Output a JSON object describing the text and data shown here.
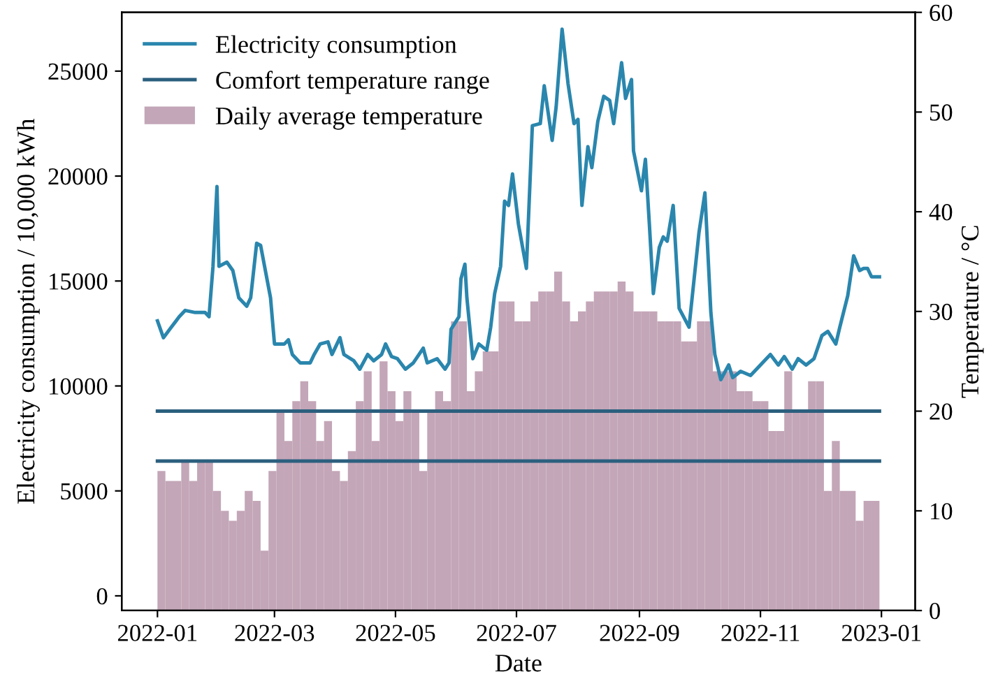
{
  "chart_data": {
    "type": "line",
    "xlabel": "Date",
    "ylabel": "Electricity consumption / 10,000 kWh",
    "y2label": "Temperature / °C",
    "xlim": [
      "2021-12-14",
      "2023-01-18"
    ],
    "xticks": [
      "2022-01",
      "2022-03",
      "2022-05",
      "2022-07",
      "2022-09",
      "2022-11",
      "2023-01"
    ],
    "ylim": [
      -700,
      27800
    ],
    "yticks": [
      0,
      5000,
      10000,
      15000,
      20000,
      25000
    ],
    "y2lim": [
      0,
      60
    ],
    "y2ticks": [
      0,
      10,
      20,
      30,
      40,
      50,
      60
    ],
    "legend": "top left",
    "grid": false,
    "marker": "none",
    "line_style": "solid",
    "series": [
      {
        "name": "Electricity consumption",
        "axis": "y",
        "color": "#2a86ad",
        "x": [
          "2022-01-01",
          "2022-01-04",
          "2022-01-08",
          "2022-01-12",
          "2022-01-15",
          "2022-01-20",
          "2022-01-25",
          "2022-01-27",
          "2022-01-29",
          "2022-01-31",
          "2022-02-01",
          "2022-02-05",
          "2022-02-08",
          "2022-02-11",
          "2022-02-15",
          "2022-02-17",
          "2022-02-20",
          "2022-02-22",
          "2022-02-27",
          "2022-03-01",
          "2022-03-06",
          "2022-03-08",
          "2022-03-10",
          "2022-03-14",
          "2022-03-19",
          "2022-03-21",
          "2022-03-24",
          "2022-03-28",
          "2022-03-30",
          "2022-04-03",
          "2022-04-05",
          "2022-04-10",
          "2022-04-13",
          "2022-04-17",
          "2022-04-20",
          "2022-04-24",
          "2022-04-26",
          "2022-04-29",
          "2022-05-02",
          "2022-05-06",
          "2022-05-10",
          "2022-05-15",
          "2022-05-17",
          "2022-05-22",
          "2022-05-26",
          "2022-05-28",
          "2022-05-29",
          "2022-06-02",
          "2022-06-03",
          "2022-06-05",
          "2022-06-06",
          "2022-06-09",
          "2022-06-12",
          "2022-06-16",
          "2022-06-18",
          "2022-06-20",
          "2022-06-23",
          "2022-06-25",
          "2022-06-27",
          "2022-06-29",
          "2022-07-02",
          "2022-07-06",
          "2022-07-09",
          "2022-07-13",
          "2022-07-15",
          "2022-07-19",
          "2022-07-21",
          "2022-07-24",
          "2022-07-27",
          "2022-07-30",
          "2022-08-01",
          "2022-08-03",
          "2022-08-06",
          "2022-08-08",
          "2022-08-11",
          "2022-08-14",
          "2022-08-17",
          "2022-08-19",
          "2022-08-23",
          "2022-08-25",
          "2022-08-28",
          "2022-08-29",
          "2022-09-02",
          "2022-09-04",
          "2022-09-06",
          "2022-09-08",
          "2022-09-11",
          "2022-09-13",
          "2022-09-15",
          "2022-09-18",
          "2022-09-21",
          "2022-09-26",
          "2022-10-01",
          "2022-10-04",
          "2022-10-07",
          "2022-10-09",
          "2022-10-12",
          "2022-10-16",
          "2022-10-18",
          "2022-10-22",
          "2022-10-27",
          "2022-11-01",
          "2022-11-06",
          "2022-11-10",
          "2022-11-13",
          "2022-11-17",
          "2022-11-20",
          "2022-11-24",
          "2022-11-28",
          "2022-12-02",
          "2022-12-05",
          "2022-12-09",
          "2022-12-11",
          "2022-12-15",
          "2022-12-18",
          "2022-12-21",
          "2022-12-23",
          "2022-12-25",
          "2022-12-27",
          "2022-12-31"
        ],
        "values": [
          13100,
          12300,
          12800,
          13300,
          13600,
          13500,
          13500,
          13300,
          15700,
          19500,
          15700,
          15900,
          15500,
          14200,
          13800,
          14200,
          16800,
          16700,
          14200,
          12000,
          12000,
          12200,
          11500,
          11100,
          11100,
          11500,
          12000,
          12100,
          11500,
          12300,
          11500,
          11200,
          10800,
          11500,
          11200,
          11500,
          12000,
          11400,
          11300,
          10800,
          11100,
          11800,
          11100,
          11300,
          10800,
          11100,
          12700,
          13300,
          15100,
          15800,
          14200,
          11300,
          12000,
          11700,
          12800,
          14400,
          15700,
          18800,
          18600,
          20100,
          17700,
          15600,
          22400,
          22500,
          24300,
          21700,
          23300,
          27000,
          24400,
          22500,
          22700,
          18600,
          21400,
          20400,
          22600,
          23800,
          23600,
          22500,
          25400,
          23700,
          24600,
          21200,
          19300,
          20800,
          17700,
          14400,
          16600,
          17100,
          16900,
          18600,
          13700,
          12800,
          17300,
          19200,
          13500,
          11500,
          10300,
          11000,
          10400,
          10700,
          10500,
          11000,
          11500,
          11000,
          11400,
          10800,
          11300,
          11000,
          11300,
          12400,
          12600,
          12000,
          12800,
          14300,
          16200,
          15500,
          15600,
          15600,
          15200,
          15200
        ]
      },
      {
        "name": "Daily average temperature",
        "type": "bar",
        "axis": "y2",
        "color": "#c3a6b8",
        "x": [
          "2022-01-01",
          "2022-01-05",
          "2022-01-09",
          "2022-01-13",
          "2022-01-17",
          "2022-01-21",
          "2022-01-25",
          "2022-01-29",
          "2022-02-02",
          "2022-02-06",
          "2022-02-10",
          "2022-02-14",
          "2022-02-18",
          "2022-02-22",
          "2022-02-26",
          "2022-03-02",
          "2022-03-06",
          "2022-03-10",
          "2022-03-14",
          "2022-03-18",
          "2022-03-22",
          "2022-03-26",
          "2022-03-30",
          "2022-04-03",
          "2022-04-07",
          "2022-04-11",
          "2022-04-15",
          "2022-04-19",
          "2022-04-23",
          "2022-04-27",
          "2022-05-01",
          "2022-05-05",
          "2022-05-09",
          "2022-05-13",
          "2022-05-17",
          "2022-05-21",
          "2022-05-25",
          "2022-05-29",
          "2022-06-02",
          "2022-06-06",
          "2022-06-10",
          "2022-06-14",
          "2022-06-18",
          "2022-06-22",
          "2022-06-26",
          "2022-06-30",
          "2022-07-04",
          "2022-07-08",
          "2022-07-12",
          "2022-07-16",
          "2022-07-20",
          "2022-07-24",
          "2022-07-28",
          "2022-08-01",
          "2022-08-05",
          "2022-08-09",
          "2022-08-13",
          "2022-08-17",
          "2022-08-21",
          "2022-08-25",
          "2022-08-29",
          "2022-09-02",
          "2022-09-06",
          "2022-09-10",
          "2022-09-14",
          "2022-09-18",
          "2022-09-22",
          "2022-09-26",
          "2022-09-30",
          "2022-10-04",
          "2022-10-08",
          "2022-10-12",
          "2022-10-16",
          "2022-10-20",
          "2022-10-24",
          "2022-10-28",
          "2022-11-01",
          "2022-11-05",
          "2022-11-09",
          "2022-11-13",
          "2022-11-17",
          "2022-11-21",
          "2022-11-25",
          "2022-11-29",
          "2022-12-03",
          "2022-12-07",
          "2022-12-11",
          "2022-12-15",
          "2022-12-19",
          "2022-12-23",
          "2022-12-27"
        ],
        "values": [
          14,
          13,
          13,
          15,
          13,
          15,
          15,
          12,
          10,
          9,
          10,
          12,
          11,
          6,
          14,
          20,
          17,
          21,
          23,
          21,
          17,
          19,
          14,
          13,
          16,
          21,
          24,
          17,
          25,
          22,
          19,
          22,
          20,
          14,
          20,
          22,
          21,
          29,
          29,
          22,
          24,
          26,
          26,
          31,
          31,
          29,
          29,
          31,
          32,
          32,
          34,
          31,
          29,
          30,
          31,
          32,
          32,
          32,
          33,
          32,
          30,
          30,
          30,
          29,
          29,
          29,
          27,
          27,
          29,
          29,
          24,
          24,
          24,
          22,
          22,
          21,
          21,
          18,
          18,
          24,
          20,
          20,
          23,
          23,
          12,
          17,
          12,
          12,
          9,
          11,
          11
        ]
      }
    ],
    "ref_lines": [
      {
        "axis": "y2",
        "value": 20,
        "label": "Comfort temperature range",
        "color": "#2b5f7e",
        "line_style": "solid"
      },
      {
        "axis": "y2",
        "value": 15,
        "color": "#2b5f7e",
        "line_style": "solid"
      }
    ]
  }
}
